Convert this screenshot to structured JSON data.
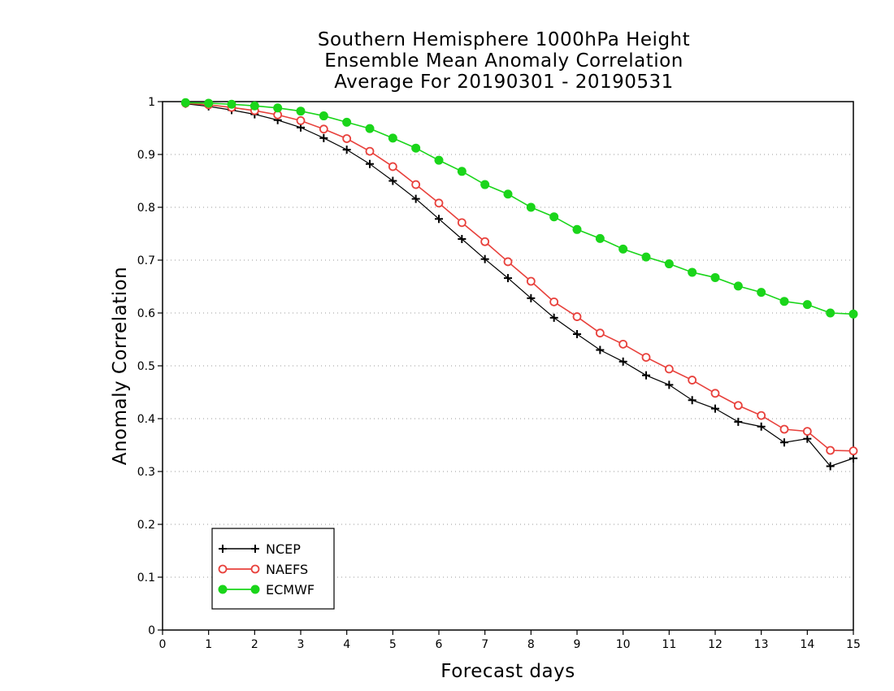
{
  "chart_data": {
    "type": "line",
    "title_lines": [
      "Southern Hemisphere 1000hPa Height",
      "Ensemble Mean Anomaly Correlation",
      "Average For 20190301 - 20190531"
    ],
    "xlabel": "Forecast days",
    "ylabel": "Anomaly Correlation",
    "xlim": [
      0,
      15
    ],
    "ylim": [
      0,
      1
    ],
    "xticks": [
      0,
      1,
      2,
      3,
      4,
      5,
      6,
      7,
      8,
      9,
      10,
      11,
      12,
      13,
      14,
      15
    ],
    "xtick_labels": [
      "0",
      "1",
      "2",
      "3",
      "4",
      "5",
      "6",
      "7",
      "8",
      "9",
      "10",
      "11",
      "12",
      "13",
      "14",
      "15"
    ],
    "yticks": [
      0,
      0.1,
      0.2,
      0.3,
      0.4,
      0.5,
      0.6,
      0.7,
      0.8,
      0.9,
      1
    ],
    "ytick_labels": [
      "0",
      "0.1",
      "0.2",
      "0.3",
      "0.4",
      "0.5",
      "0.6",
      "0.7",
      "0.8",
      "0.9",
      "1"
    ],
    "grid": "horizontal-dotted",
    "legend_position": "bottom-left",
    "x": [
      0.5,
      1,
      1.5,
      2,
      2.5,
      3,
      3.5,
      4,
      4.5,
      5,
      5.5,
      6,
      6.5,
      7,
      7.5,
      8,
      8.5,
      9,
      9.5,
      10,
      10.5,
      11,
      11.5,
      12,
      12.5,
      13,
      13.5,
      14,
      14.5,
      15
    ],
    "series": [
      {
        "name": "NCEP",
        "color": "#000000",
        "marker": "plus",
        "values": [
          0.996,
          0.991,
          0.984,
          0.976,
          0.965,
          0.951,
          0.931,
          0.909,
          0.882,
          0.85,
          0.816,
          0.778,
          0.74,
          0.702,
          0.666,
          0.628,
          0.591,
          0.56,
          0.53,
          0.508,
          0.482,
          0.464,
          0.435,
          0.419,
          0.394,
          0.385,
          0.355,
          0.362,
          0.31,
          0.325
        ]
      },
      {
        "name": "NAEFS",
        "color": "#e8413c",
        "marker": "open-circle",
        "values": [
          0.997,
          0.994,
          0.989,
          0.983,
          0.975,
          0.964,
          0.948,
          0.93,
          0.906,
          0.877,
          0.843,
          0.808,
          0.771,
          0.735,
          0.697,
          0.66,
          0.621,
          0.593,
          0.562,
          0.541,
          0.516,
          0.494,
          0.473,
          0.448,
          0.425,
          0.406,
          0.38,
          0.376,
          0.34,
          0.339
        ]
      },
      {
        "name": "ECMWF",
        "color": "#1ad51a",
        "marker": "filled-circle",
        "values": [
          0.998,
          0.997,
          0.995,
          0.992,
          0.988,
          0.982,
          0.973,
          0.961,
          0.949,
          0.931,
          0.912,
          0.889,
          0.868,
          0.843,
          0.825,
          0.8,
          0.782,
          0.758,
          0.741,
          0.721,
          0.706,
          0.693,
          0.677,
          0.667,
          0.651,
          0.639,
          0.622,
          0.616,
          0.6,
          0.598
        ]
      }
    ]
  }
}
